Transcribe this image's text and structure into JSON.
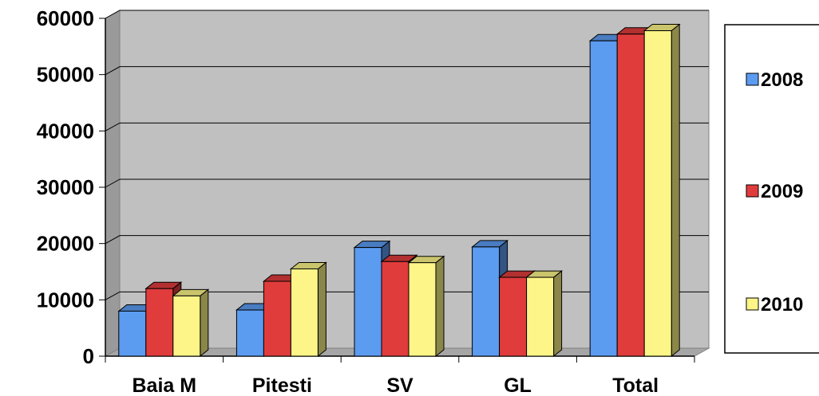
{
  "chart_data": {
    "type": "bar",
    "categories": [
      "Baia M",
      "Pitesti",
      "SV",
      "GL",
      "Total"
    ],
    "series": [
      {
        "name": "2008",
        "color": "#5b9bf0",
        "values": [
          8000,
          8200,
          19300,
          19400,
          56000
        ]
      },
      {
        "name": "2009",
        "color": "#e03c3c",
        "values": [
          12000,
          13300,
          16800,
          14000,
          57200
        ]
      },
      {
        "name": "2010",
        "color": "#fdf587",
        "values": [
          10700,
          15500,
          16600,
          14000,
          57800
        ]
      }
    ],
    "y_ticks": [
      "0",
      "10000",
      "20000",
      "30000",
      "40000",
      "50000",
      "60000"
    ],
    "ylim": [
      0,
      60000
    ],
    "grid": true,
    "three_d": true,
    "legend_position": "right",
    "plot_background": "#c0c0c0"
  }
}
